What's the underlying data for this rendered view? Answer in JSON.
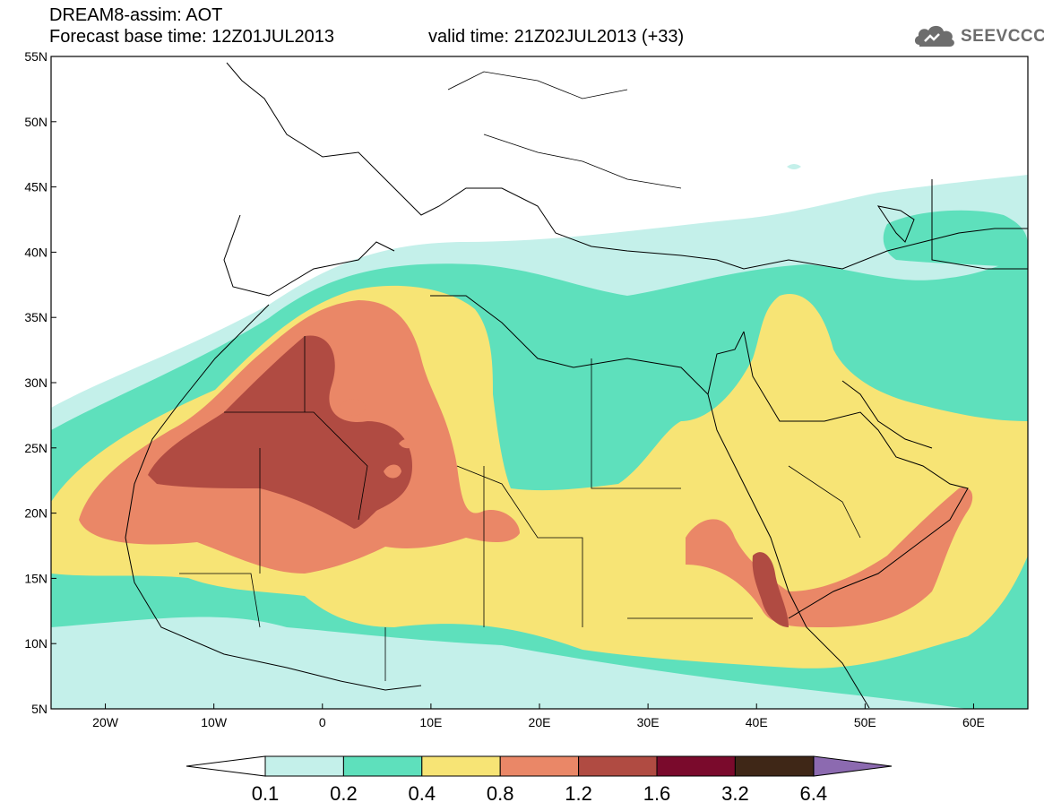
{
  "header": {
    "title": "DREAM8-assim: AOT",
    "base_time": "Forecast base time: 12Z01JUL2013",
    "valid_time": "valid time: 21Z02JUL2013 (+33)"
  },
  "logo": {
    "text": "SEEVCCC",
    "icon": "cloud-logo-icon"
  },
  "map": {
    "variable": "AOT",
    "lon_range": [
      -25,
      65
    ],
    "lat_range": [
      5,
      55
    ],
    "lat_ticks": [
      "55N",
      "50N",
      "45N",
      "40N",
      "35N",
      "30N",
      "25N",
      "20N",
      "15N",
      "10N",
      "5N"
    ],
    "lon_ticks": [
      "20W",
      "10W",
      "0",
      "10E",
      "20E",
      "30E",
      "40E",
      "50E",
      "60E"
    ]
  },
  "colorbar": {
    "labels": [
      "0.1",
      "0.2",
      "0.4",
      "0.8",
      "1.2",
      "1.6",
      "3.2",
      "6.4"
    ],
    "colors": [
      "#c4f0ea",
      "#5ee0bc",
      "#f7e475",
      "#ea8767",
      "#b04b42",
      "#7a0a2c",
      "#3f2717",
      "#8c6ab0"
    ]
  }
}
